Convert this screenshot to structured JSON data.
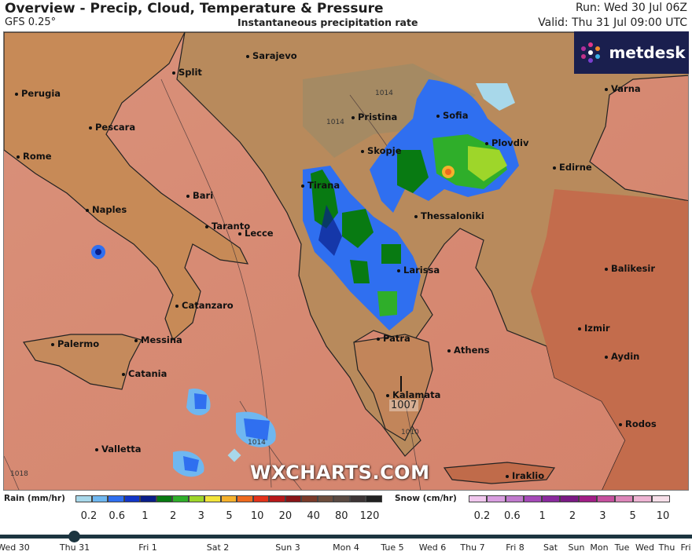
{
  "header": {
    "title": "Overview - Precip, Cloud, Temperature & Pressure",
    "model": "GFS 0.25°",
    "parameter": "Instantaneous precipitation rate",
    "run": "Run: Wed 30 Jul 06Z",
    "valid": "Valid: Thu 31 Jul 09:00 UTC"
  },
  "logo": {
    "text": "metdesk"
  },
  "watermark": "WXCHARTS.COM",
  "map": {
    "cities": [
      {
        "name": "Sarajevo"
      },
      {
        "name": "Split"
      },
      {
        "name": "Perugia"
      },
      {
        "name": "Pescara"
      },
      {
        "name": "Rome"
      },
      {
        "name": "Pristina"
      },
      {
        "name": "Sofia"
      },
      {
        "name": "Varna"
      },
      {
        "name": "Plovdiv"
      },
      {
        "name": "Skopje"
      },
      {
        "name": "Bari"
      },
      {
        "name": "Tirana"
      },
      {
        "name": "Edirne"
      },
      {
        "name": "Naples"
      },
      {
        "name": "Thessaloniki"
      },
      {
        "name": "Taranto"
      },
      {
        "name": "Lecce"
      },
      {
        "name": "Balikesir"
      },
      {
        "name": "Larissa"
      },
      {
        "name": "Catanzaro"
      },
      {
        "name": "Izmir"
      },
      {
        "name": "Palermo"
      },
      {
        "name": "Messina"
      },
      {
        "name": "Patra"
      },
      {
        "name": "Athens"
      },
      {
        "name": "Aydin"
      },
      {
        "name": "Catania"
      },
      {
        "name": "Kalamata"
      },
      {
        "name": "Rodos"
      },
      {
        "name": "Valletta"
      },
      {
        "name": "Iraklio"
      }
    ],
    "isobars": [
      "1014",
      "1014",
      "1014",
      "1010",
      "1018"
    ],
    "low_pressure": "1007"
  },
  "legend": {
    "rain_title": "Rain (mm/hr)",
    "rain_ticks": [
      "0.2",
      "0.6",
      "1",
      "2",
      "3",
      "5",
      "10",
      "20",
      "40",
      "80",
      "120"
    ],
    "rain_colors": [
      "#a8d8ea",
      "#6fb7f0",
      "#2f6ff0",
      "#1236c8",
      "#0a1f8a",
      "#087a12",
      "#2fae2a",
      "#9ed62a",
      "#f2e43a",
      "#f5b12c",
      "#ee6a1e",
      "#e3331b",
      "#b8181a",
      "#8a1518",
      "#7a3a2a",
      "#6d4d3c",
      "#5a4a42",
      "#3d3536",
      "#222222"
    ],
    "snow_title": "Snow (cm/hr)",
    "snow_ticks": [
      "0.2",
      "0.6",
      "1",
      "2",
      "3",
      "5",
      "10"
    ],
    "snow_colors": [
      "#f1c7ee",
      "#d99ee0",
      "#c07acd",
      "#a54ab8",
      "#8a2a9e",
      "#7a1a84",
      "#a11e86",
      "#c6509e",
      "#dd86b9",
      "#eeb4d3",
      "#f7dfe9"
    ]
  },
  "timeline": {
    "days": [
      "Wed 30",
      "Thu 31",
      "Fri 1",
      "Sat 2",
      "Sun 3",
      "Mon 4",
      "Tue 5",
      "Wed 6",
      "Thu 7",
      "Fri 8",
      "Sat",
      "Sun",
      "Mon",
      "Tue",
      "Wed",
      "Thu",
      "Fri"
    ]
  }
}
